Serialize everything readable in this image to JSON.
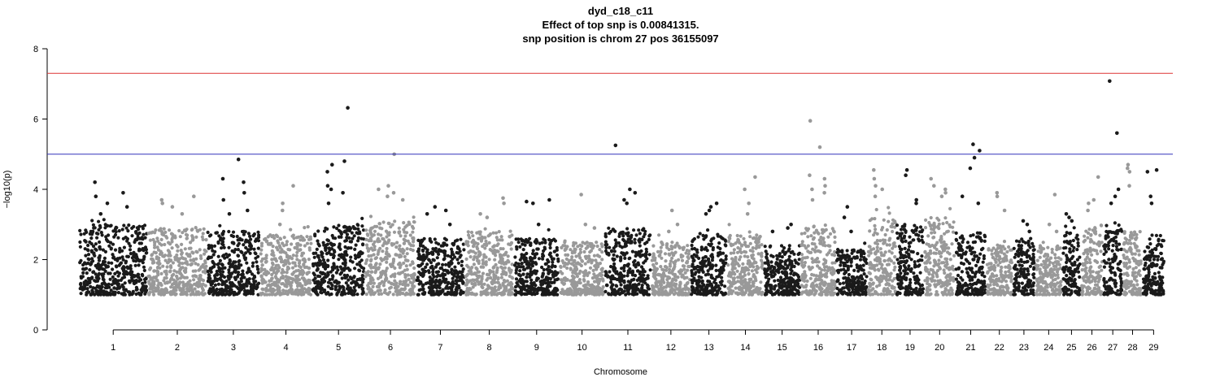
{
  "chart_data": {
    "type": "scatter",
    "title": "dyd_c18_c11",
    "subtitle_lines": [
      "Effect of top snp is 0.00841315.",
      "snp position is chrom 27 pos 36155097"
    ],
    "xlabel": "Chromosome",
    "ylabel": "−log10(p)",
    "ylim": [
      0,
      8
    ],
    "yticks": [
      0,
      2,
      4,
      6,
      8
    ],
    "grid": false,
    "legend": "none",
    "colors": {
      "odd_chromosome": "#1a1a1a",
      "even_chromosome": "#999999",
      "genomewide_line": "#dd3333",
      "suggestive_line": "#3333bb",
      "axis": "#000000"
    },
    "thresholds": {
      "genomewide": 7.3,
      "suggestive": 5.0
    },
    "chromosomes": [
      {
        "chr": "1",
        "ceiling": 3.0,
        "tops": [
          4.2,
          3.9,
          3.8,
          3.6,
          3.5,
          3.3
        ]
      },
      {
        "chr": "2",
        "ceiling": 2.9,
        "tops": [
          3.8,
          3.7,
          3.6,
          3.5,
          3.3
        ]
      },
      {
        "chr": "3",
        "ceiling": 2.8,
        "tops": [
          4.85,
          4.3,
          4.2,
          3.9,
          3.7,
          3.4,
          3.3
        ]
      },
      {
        "chr": "4",
        "ceiling": 2.7,
        "tops": [
          4.1,
          3.6,
          3.4,
          3.0
        ]
      },
      {
        "chr": "5",
        "ceiling": 3.0,
        "tops": [
          6.32,
          4.8,
          4.7,
          4.5,
          4.1,
          4.0,
          3.9,
          3.6
        ]
      },
      {
        "chr": "6",
        "ceiling": 3.1,
        "tops": [
          5.0,
          4.1,
          4.0,
          3.9,
          3.8,
          3.7
        ]
      },
      {
        "chr": "7",
        "ceiling": 2.6,
        "tops": [
          3.5,
          3.4,
          3.3,
          3.0
        ]
      },
      {
        "chr": "8",
        "ceiling": 2.8,
        "tops": [
          3.75,
          3.6,
          3.3,
          3.2
        ]
      },
      {
        "chr": "9",
        "ceiling": 2.6,
        "tops": [
          3.7,
          3.65,
          3.6,
          3.0
        ]
      },
      {
        "chr": "10",
        "ceiling": 2.5,
        "tops": [
          3.85,
          3.0,
          2.9
        ]
      },
      {
        "chr": "11",
        "ceiling": 2.9,
        "tops": [
          5.25,
          4.0,
          3.9,
          3.7,
          3.6
        ]
      },
      {
        "chr": "12",
        "ceiling": 2.5,
        "tops": [
          3.4,
          3.0,
          2.8
        ]
      },
      {
        "chr": "13",
        "ceiling": 2.7,
        "tops": [
          3.6,
          3.5,
          3.4,
          3.3
        ]
      },
      {
        "chr": "14",
        "ceiling": 2.7,
        "tops": [
          4.35,
          4.0,
          3.6,
          3.3
        ]
      },
      {
        "chr": "15",
        "ceiling": 2.4,
        "tops": [
          3.0,
          2.9,
          2.8
        ]
      },
      {
        "chr": "16",
        "ceiling": 3.0,
        "tops": [
          5.95,
          5.2,
          4.4,
          4.3,
          4.1,
          4.0,
          3.9,
          3.7
        ]
      },
      {
        "chr": "17",
        "ceiling": 2.3,
        "tops": [
          3.5,
          3.2,
          2.8
        ]
      },
      {
        "chr": "18",
        "ceiling": 3.2,
        "tops": [
          4.55,
          4.3,
          4.1,
          4.0,
          3.8
        ]
      },
      {
        "chr": "19",
        "ceiling": 3.0,
        "tops": [
          4.55,
          4.4,
          3.7,
          3.6
        ]
      },
      {
        "chr": "20",
        "ceiling": 3.2,
        "tops": [
          4.3,
          4.1,
          4.0,
          3.9,
          3.8
        ]
      },
      {
        "chr": "21",
        "ceiling": 2.8,
        "tops": [
          5.28,
          5.1,
          4.9,
          4.6,
          3.8,
          3.6
        ]
      },
      {
        "chr": "22",
        "ceiling": 2.4,
        "tops": [
          3.9,
          3.8,
          3.4
        ]
      },
      {
        "chr": "23",
        "ceiling": 2.6,
        "tops": [
          3.1,
          3.0,
          2.8
        ]
      },
      {
        "chr": "24",
        "ceiling": 2.4,
        "tops": [
          3.85,
          3.0,
          2.8
        ]
      },
      {
        "chr": "25",
        "ceiling": 2.8,
        "tops": [
          3.3,
          3.2,
          3.1
        ]
      },
      {
        "chr": "26",
        "ceiling": 3.0,
        "tops": [
          4.35,
          3.7,
          3.6,
          3.4
        ]
      },
      {
        "chr": "27",
        "ceiling": 3.0,
        "tops": [
          7.08,
          5.6,
          4.0,
          3.8,
          3.6
        ]
      },
      {
        "chr": "28",
        "ceiling": 2.8,
        "tops": [
          4.7,
          4.6,
          4.5,
          4.1
        ]
      },
      {
        "chr": "29",
        "ceiling": 2.7,
        "tops": [
          4.55,
          4.5,
          3.8,
          3.6
        ]
      }
    ]
  }
}
